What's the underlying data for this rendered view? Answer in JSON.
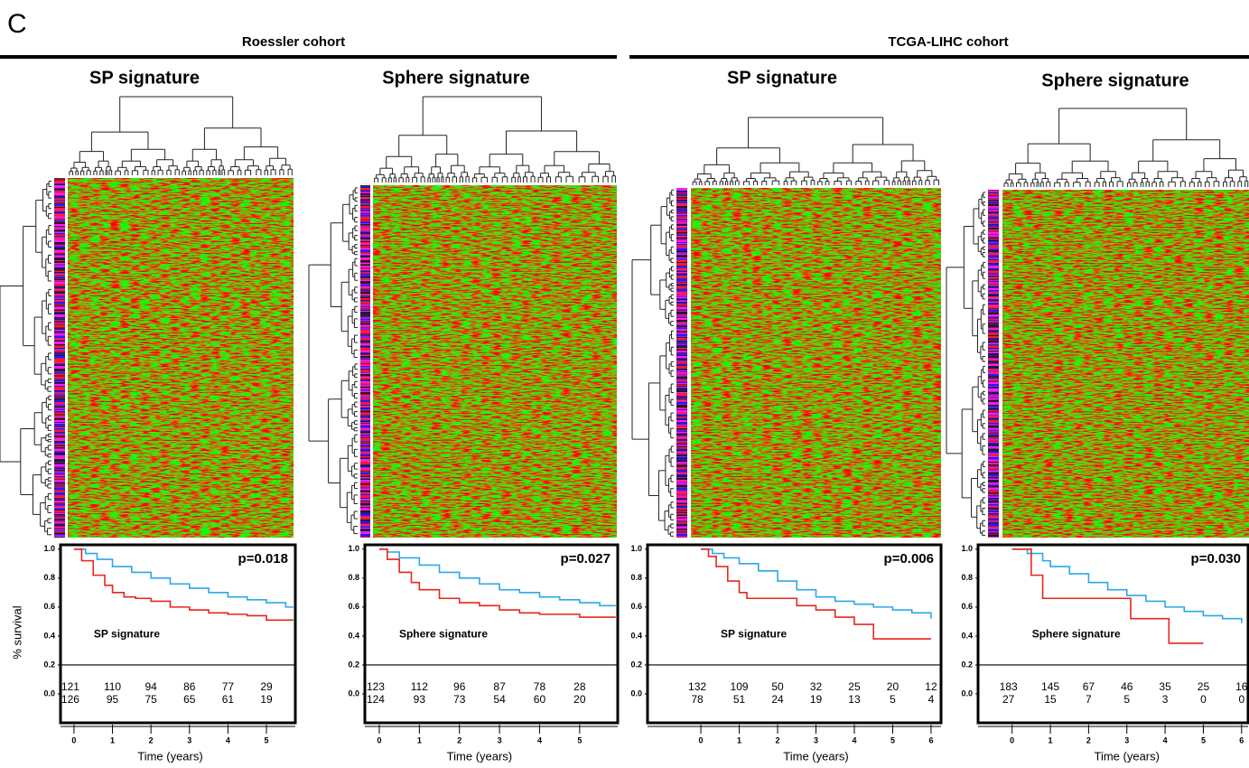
{
  "panel": "C",
  "cohorts": [
    "Roessler cohort",
    "TCGA-LIHC cohort"
  ],
  "chart_data": [
    {
      "type": "line",
      "step": true,
      "title": "SP signature",
      "annotation": "p=0.018",
      "ylabel": "% survival",
      "xlabel": "Time (years)",
      "xlim": [
        -0.35,
        5.75
      ],
      "ylim": [
        -0.2,
        1.03
      ],
      "xticks": [
        0,
        1,
        2,
        3,
        4,
        5
      ],
      "yticks": [
        {
          "value": 0,
          "label": "0.0"
        },
        {
          "value": 0.2,
          "label": "0.2"
        },
        {
          "value": 0.4,
          "label": "0.4"
        },
        {
          "value": 0.6,
          "label": "0.6"
        },
        {
          "value": 0.8,
          "label": "0.8"
        },
        {
          "value": 1,
          "label": "1.0"
        }
      ],
      "at_risk": [
        [
          121,
          110,
          94,
          86,
          77,
          29
        ],
        [
          126,
          95,
          75,
          65,
          61,
          19
        ]
      ],
      "series": [
        {
          "color": "#2aa7ea",
          "x": [
            0,
            0.3,
            0.6,
            1,
            1.5,
            2,
            2.5,
            3,
            3.5,
            4,
            4.5,
            5,
            5.5,
            5.7
          ],
          "values": [
            1,
            0.97,
            0.93,
            0.88,
            0.84,
            0.8,
            0.76,
            0.73,
            0.7,
            0.67,
            0.65,
            0.63,
            0.6,
            0.6
          ]
        },
        {
          "name": "SP signature",
          "color": "#e8251d",
          "x": [
            0,
            0.2,
            0.5,
            0.8,
            1,
            1.3,
            1.6,
            2,
            2.5,
            3,
            3.5,
            4,
            4.5,
            5,
            5.7
          ],
          "values": [
            1,
            0.92,
            0.82,
            0.75,
            0.7,
            0.67,
            0.66,
            0.64,
            0.6,
            0.58,
            0.56,
            0.55,
            0.54,
            0.51,
            0.51
          ]
        }
      ]
    },
    {
      "type": "line",
      "step": true,
      "title": "Sphere signature",
      "annotation": "p=0.027",
      "xlabel": "Time (years)",
      "xlim": [
        -0.36,
        5.95
      ],
      "ylim": [
        -0.2,
        1.03
      ],
      "xticks": [
        0,
        1,
        2,
        3,
        4,
        5
      ],
      "yticks": [
        {
          "value": 0,
          "label": "0.0"
        },
        {
          "value": 0.2,
          "label": "0.2"
        },
        {
          "value": 0.4,
          "label": "0.4"
        },
        {
          "value": 0.6,
          "label": "0.6"
        },
        {
          "value": 0.8,
          "label": "0.8"
        },
        {
          "value": 1,
          "label": "1.0"
        }
      ],
      "at_risk": [
        [
          123,
          112,
          96,
          87,
          78,
          28
        ],
        [
          124,
          93,
          73,
          54,
          60,
          20
        ]
      ],
      "series": [
        {
          "color": "#2aa7ea",
          "x": [
            0,
            0.2,
            0.5,
            1,
            1.5,
            2,
            2.5,
            3,
            3.5,
            4,
            4.5,
            5,
            5.5,
            5.9
          ],
          "values": [
            1,
            0.98,
            0.94,
            0.89,
            0.84,
            0.8,
            0.76,
            0.72,
            0.7,
            0.67,
            0.65,
            0.63,
            0.61,
            0.61
          ]
        },
        {
          "name": "Sphere signature",
          "color": "#e8251d",
          "x": [
            0,
            0.2,
            0.5,
            0.8,
            1,
            1.5,
            2,
            2.5,
            3,
            3.5,
            4,
            4.5,
            5,
            5.9
          ],
          "values": [
            1,
            0.93,
            0.84,
            0.77,
            0.72,
            0.66,
            0.63,
            0.61,
            0.58,
            0.56,
            0.55,
            0.55,
            0.53,
            0.53
          ]
        }
      ]
    },
    {
      "type": "line",
      "step": true,
      "title": "SP signature",
      "annotation": "p=0.006",
      "xlabel": "Time (years)",
      "xlim": [
        -1.39,
        6.26
      ],
      "ylim": [
        -0.2,
        1.03
      ],
      "xticks": [
        0,
        1,
        2,
        3,
        4,
        5,
        6
      ],
      "yticks": [
        {
          "value": 0,
          "label": "0.0"
        },
        {
          "value": 0.2,
          "label": "0.2"
        },
        {
          "value": 0.4,
          "label": "0.4"
        },
        {
          "value": 0.6,
          "label": "0.6"
        },
        {
          "value": 0.8,
          "label": "0.8"
        },
        {
          "value": 1,
          "label": "1.0"
        }
      ],
      "at_risk": [
        [
          132,
          109,
          50,
          32,
          25,
          20,
          12
        ],
        [
          78,
          51,
          24,
          19,
          13,
          5,
          4
        ]
      ],
      "series": [
        {
          "color": "#2aa7ea",
          "x": [
            0,
            0.3,
            0.6,
            1,
            1.5,
            2,
            2.5,
            3,
            3.5,
            4,
            4.5,
            5,
            5.5,
            6
          ],
          "values": [
            1,
            0.97,
            0.94,
            0.9,
            0.85,
            0.78,
            0.72,
            0.67,
            0.64,
            0.62,
            0.6,
            0.58,
            0.56,
            0.52
          ]
        },
        {
          "name": "SP signature",
          "color": "#e8251d",
          "x": [
            0,
            0.2,
            0.4,
            0.7,
            1,
            1.2,
            2,
            2.5,
            3,
            3.5,
            4,
            4.5,
            6
          ],
          "values": [
            1,
            0.95,
            0.88,
            0.78,
            0.7,
            0.66,
            0.66,
            0.61,
            0.58,
            0.53,
            0.48,
            0.38,
            0.38
          ]
        }
      ]
    },
    {
      "type": "line",
      "step": true,
      "title": "Sphere signature",
      "annotation": "p=0.030",
      "xlabel": "Time (years)",
      "xlim": [
        -0.89,
        6.17
      ],
      "ylim": [
        -0.2,
        1.03
      ],
      "xticks": [
        0,
        1,
        2,
        3,
        4,
        5,
        6
      ],
      "yticks": [
        {
          "value": 0,
          "label": "0.0"
        },
        {
          "value": 0.2,
          "label": "0.2"
        },
        {
          "value": 0.4,
          "label": "0.4"
        },
        {
          "value": 0.6,
          "label": "0.6"
        },
        {
          "value": 0.8,
          "label": "0.8"
        },
        {
          "value": 1,
          "label": "1.0"
        }
      ],
      "at_risk": [
        [
          183,
          145,
          67,
          46,
          35,
          25,
          16
        ],
        [
          27,
          15,
          7,
          5,
          3,
          0,
          0
        ]
      ],
      "series": [
        {
          "color": "#2aa7ea",
          "x": [
            0,
            0.4,
            0.8,
            1,
            1.5,
            2,
            2.5,
            3,
            3.5,
            4,
            4.5,
            5,
            5.5,
            6
          ],
          "values": [
            1,
            0.97,
            0.92,
            0.88,
            0.83,
            0.77,
            0.72,
            0.68,
            0.64,
            0.6,
            0.57,
            0.54,
            0.52,
            0.49
          ]
        },
        {
          "name": "Sphere signature",
          "color": "#e8251d",
          "x": [
            0,
            0.5,
            0.8,
            3.1,
            4.1,
            5
          ],
          "values": [
            1,
            0.82,
            0.66,
            0.52,
            0.35,
            0.35
          ]
        }
      ]
    }
  ]
}
